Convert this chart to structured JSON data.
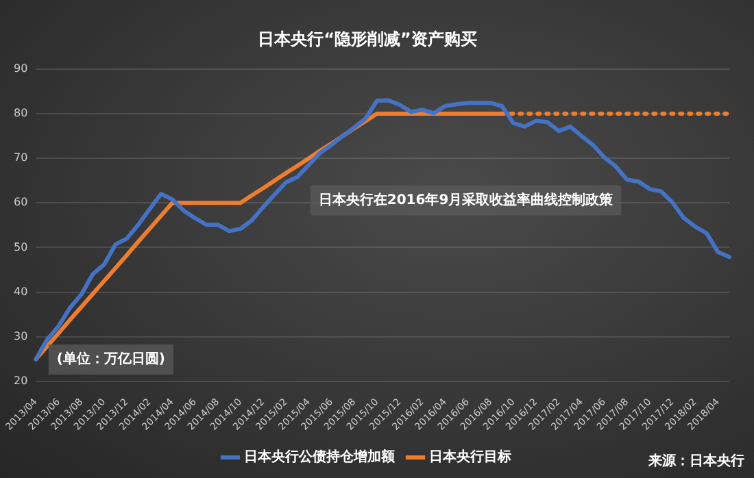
{
  "chart_data": {
    "type": "line",
    "title": "日本央行“隐形削减”资产购买",
    "categories": [
      "2013/04",
      null,
      "2013/06",
      null,
      "2013/08",
      null,
      "2013/10",
      null,
      "2013/12",
      null,
      "2014/02",
      null,
      "2014/04",
      null,
      "2014/06",
      null,
      "2014/08",
      null,
      "2014/10",
      null,
      "2014/12",
      null,
      "2015/02",
      null,
      "2015/04",
      null,
      "2015/06",
      null,
      "2015/08",
      null,
      "2015/10",
      null,
      "2015/12",
      null,
      "2016/02",
      null,
      "2016/04",
      null,
      "2016/06",
      null,
      "2016/08",
      null,
      "2016/10",
      null,
      "2016/12",
      null,
      "2017/02",
      null,
      "2017/04",
      null,
      "2017/06",
      null,
      "2017/08",
      null,
      "2017/10",
      null,
      "2017/12",
      null,
      "2018/02",
      null,
      "2018/04",
      null
    ],
    "series": [
      {
        "name": "日本央行公债持仓增加额",
        "color": "#4472c4",
        "line_style": "solid",
        "values": [
          25,
          29.4,
          32.4,
          36.5,
          39.5,
          44,
          46.2,
          50.7,
          52,
          55.1,
          58.6,
          62,
          60.8,
          58.3,
          56.6,
          55.1,
          55.1,
          53.7,
          54.2,
          56.1,
          59.1,
          61.9,
          64.6,
          65.8,
          68.5,
          71.2,
          73,
          75,
          76.9,
          78.9,
          82.9,
          83,
          82,
          80.4,
          80.9,
          80.1,
          81.7,
          82.1,
          82.4,
          82.4,
          82.4,
          81.7,
          77.9,
          77.1,
          78.4,
          78.1,
          76.1,
          77.1,
          75,
          73,
          70.2,
          68.2,
          65.2,
          64.8,
          63.1,
          62.6,
          60.1,
          56.6,
          54.7,
          53.2,
          49,
          47.9
        ]
      },
      {
        "name": "日本央行目标",
        "color": "#ed7d31",
        "line_style": "solid",
        "values": [
          25,
          27.9,
          30.8,
          33.8,
          36.7,
          39.6,
          42.5,
          45.4,
          48.3,
          51.3,
          54.2,
          57.1,
          60,
          60,
          60,
          60,
          60,
          60,
          60,
          61.7,
          63.3,
          65,
          66.7,
          68.3,
          70,
          71.7,
          73.3,
          75,
          76.7,
          78.3,
          80,
          80,
          80,
          80,
          80,
          80,
          80,
          80,
          80,
          80,
          80,
          80,
          null,
          null,
          null,
          null,
          null,
          null,
          null,
          null,
          null,
          null,
          null,
          null,
          null,
          null,
          null,
          null,
          null,
          null,
          null,
          null
        ]
      },
      {
        "color": "#ed7d31",
        "line_style": "dotted",
        "values": [
          null,
          null,
          null,
          null,
          null,
          null,
          null,
          null,
          null,
          null,
          null,
          null,
          null,
          null,
          null,
          null,
          null,
          null,
          null,
          null,
          null,
          null,
          null,
          null,
          null,
          null,
          null,
          null,
          null,
          null,
          null,
          null,
          null,
          null,
          null,
          null,
          null,
          null,
          null,
          null,
          null,
          80,
          80,
          80,
          80,
          80,
          80,
          80,
          80,
          80,
          80,
          80,
          80,
          80,
          80,
          80,
          80,
          80,
          80,
          80,
          80,
          80
        ]
      }
    ],
    "ylim": [
      20,
      90
    ],
    "yticks": [
      20,
      30,
      40,
      50,
      60,
      70,
      80,
      90
    ],
    "grid": "y",
    "legend": "bottom",
    "marker": "none",
    "annotations": [
      "日本央行在2016年9月采取收益率曲线控制政策",
      "(单位：万亿日圆)",
      "来源：日本央行"
    ]
  }
}
